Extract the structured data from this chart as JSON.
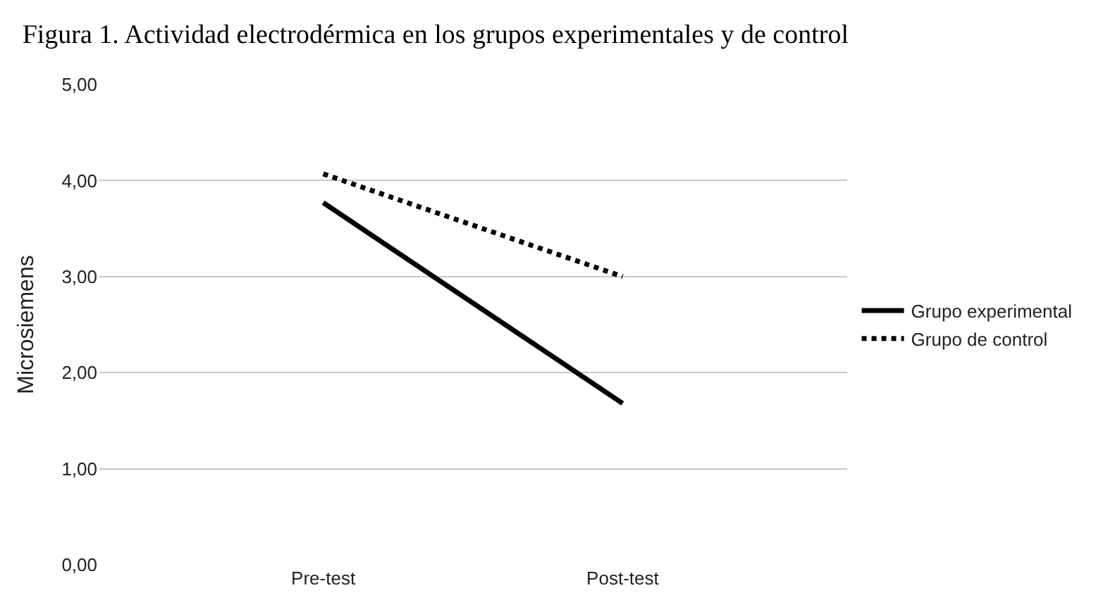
{
  "chart_data": {
    "type": "line",
    "title": "Figura 1. Actividad electrodérmica en los grupos experimentales y de control",
    "ylabel": "Microsiemens",
    "categories": [
      "Pre-test",
      "Post-test"
    ],
    "series": [
      {
        "name": "Grupo experimental",
        "color": "#000000",
        "values": [
          3.77,
          1.68
        ],
        "line_style": "solid"
      },
      {
        "name": "Grupo de control",
        "color": "#000000",
        "values": [
          4.07,
          3.0
        ],
        "line_style": "dotted"
      }
    ],
    "ylim": [
      0,
      5
    ],
    "yticks": [
      {
        "value": 0,
        "label": "0,00"
      },
      {
        "value": 1,
        "label": "1,00"
      },
      {
        "value": 2,
        "label": "2,00"
      },
      {
        "value": 3,
        "label": "3,00"
      },
      {
        "value": 4,
        "label": "4,00"
      },
      {
        "value": 5,
        "label": "5,00"
      }
    ],
    "grid": "y",
    "legend": "right",
    "marker": "none"
  }
}
